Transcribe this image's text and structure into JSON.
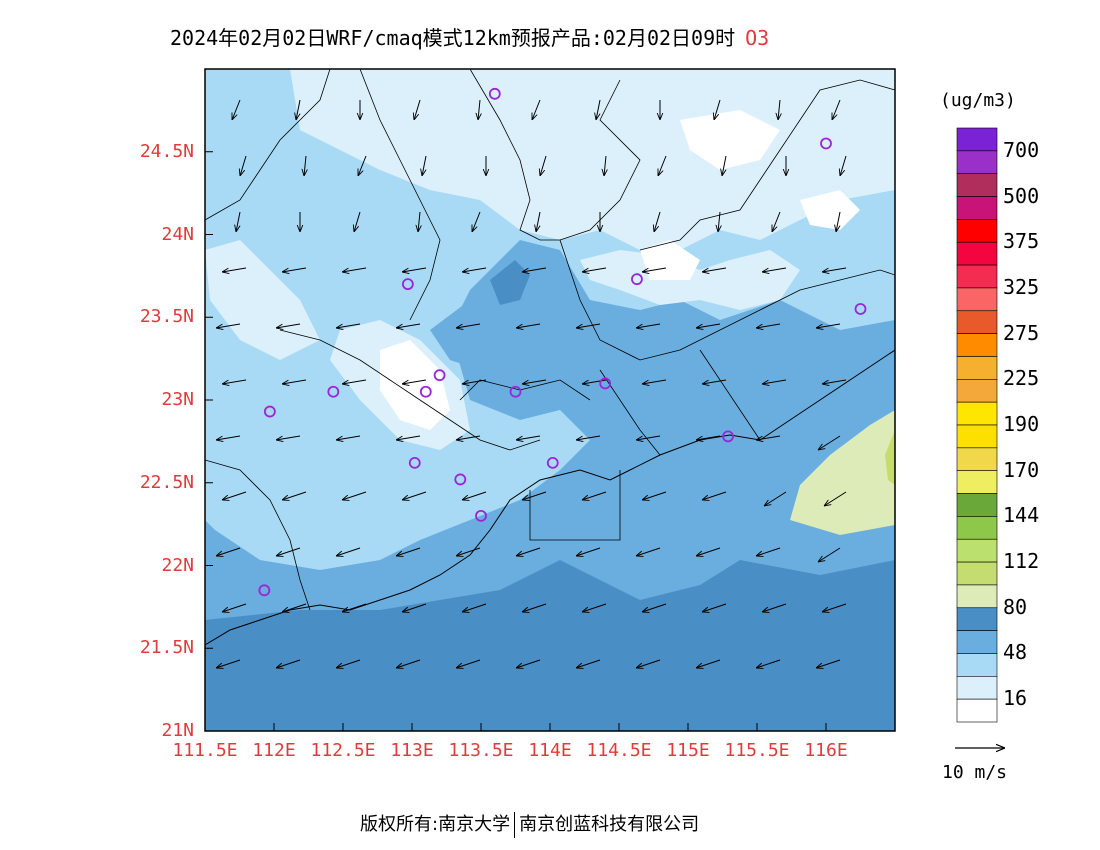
{
  "title": {
    "text": "2024年02月02日WRF/cmaq模式12km预报产品:02月02日09时",
    "species": "O3"
  },
  "map": {
    "lat_ticks": [
      "24.5N",
      "24N",
      "23.5N",
      "23N",
      "22.5N",
      "22N",
      "21.5N",
      "21N"
    ],
    "lat_values": [
      24.5,
      24,
      23.5,
      23,
      22.5,
      22,
      21.5,
      21
    ],
    "lon_ticks": [
      "111.5E",
      "112E",
      "112.5E",
      "113E",
      "113.5E",
      "114E",
      "114.5E",
      "115E",
      "115.5E",
      "116E"
    ],
    "lon_values": [
      111.5,
      112,
      112.5,
      113,
      113.5,
      114,
      114.5,
      115,
      115.5,
      116
    ],
    "lat_range": [
      21.0,
      25.0
    ],
    "lon_range": [
      111.5,
      116.5
    ],
    "stations": [
      [
        113.6,
        24.85
      ],
      [
        116.0,
        24.55
      ],
      [
        112.97,
        23.7
      ],
      [
        114.63,
        23.73
      ],
      [
        116.25,
        23.55
      ],
      [
        113.2,
        23.15
      ],
      [
        112.43,
        23.05
      ],
      [
        113.1,
        23.05
      ],
      [
        113.75,
        23.05
      ],
      [
        114.4,
        23.1
      ],
      [
        111.97,
        22.93
      ],
      [
        115.29,
        22.78
      ],
      [
        113.02,
        22.62
      ],
      [
        114.02,
        22.62
      ],
      [
        113.35,
        22.52
      ],
      [
        113.5,
        22.3
      ],
      [
        111.93,
        21.85
      ]
    ]
  },
  "colorbar": {
    "unit": "(ug/m3)",
    "labels": [
      "700",
      "500",
      "375",
      "325",
      "275",
      "225",
      "190",
      "170",
      "144",
      "112",
      "80",
      "48",
      "16"
    ],
    "colors": [
      "#7a23d6",
      "#9b30c8",
      "#b02e5c",
      "#c81478",
      "#ff0000",
      "#f5053f",
      "#f52c52",
      "#fa6666",
      "#e85a2a",
      "#ff8c00",
      "#f6b030",
      "#f5a83a",
      "#ffe600",
      "#fde000",
      "#f0d84a",
      "#eeee60",
      "#6aa83a",
      "#8ec84a",
      "#bce06e",
      "#c4dc70",
      "#dcebb8",
      "#4a8ec6",
      "#6aaee0",
      "#a8daf6",
      "#dcf0fc",
      "#ffffff"
    ]
  },
  "vector_legend": {
    "label": "10  m/s"
  },
  "copyright": {
    "owner": "版权所有:南京大学",
    "company": "南京创蓝科技有限公司"
  }
}
